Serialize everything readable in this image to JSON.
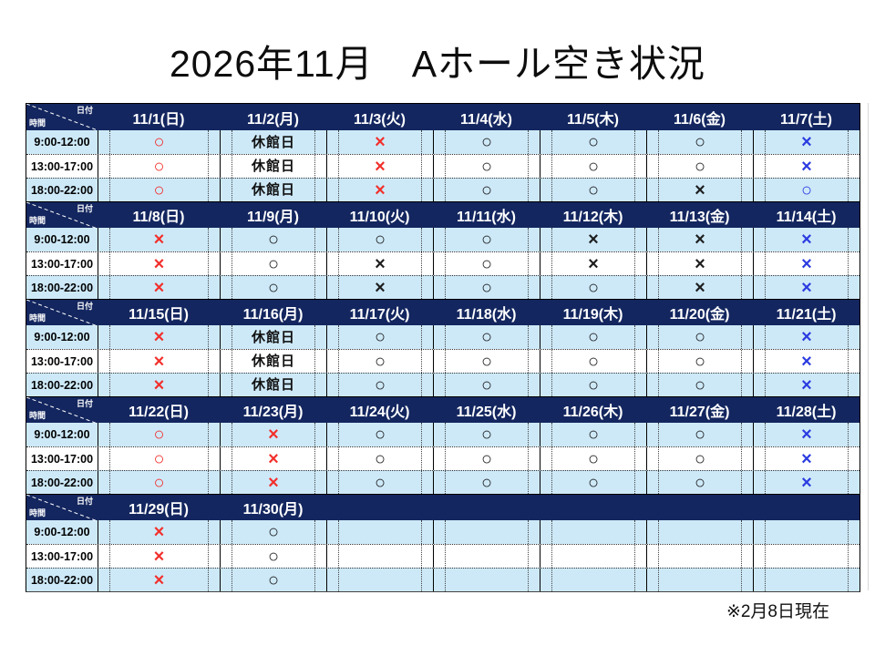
{
  "title": "2026年11月　Aホール空き状況",
  "note": "※2月8日現在",
  "corner": {
    "date_label": "日付",
    "time_label": "時間"
  },
  "legend_semantics": {
    "available": "○",
    "unavailable": "×",
    "closed": "休館日"
  },
  "colors": {
    "header_bg": "#13265F",
    "row_alt_bg": "#CDE9F8",
    "sunday_holiday_red": "#F2302C",
    "saturday_blue": "#2B3CE0",
    "weekday_black": "#1E1E1E"
  },
  "times": [
    "9:00-12:00",
    "13:00-17:00",
    "18:00-22:00"
  ],
  "weeks": [
    {
      "dates": [
        "11/1(日)",
        "11/2(月)",
        "11/3(火)",
        "11/4(水)",
        "11/5(木)",
        "11/6(金)",
        "11/7(土)"
      ],
      "rows": [
        [
          "○:r",
          "休館日:c",
          "×:r",
          "○:k",
          "○:k",
          "○:k",
          "×:b"
        ],
        [
          "○:r",
          "休館日:c",
          "×:r",
          "○:k",
          "○:k",
          "○:k",
          "×:b"
        ],
        [
          "○:r",
          "休館日:c",
          "×:r",
          "○:k",
          "○:k",
          "×:k",
          "○:b"
        ]
      ]
    },
    {
      "dates": [
        "11/8(日)",
        "11/9(月)",
        "11/10(火)",
        "11/11(水)",
        "11/12(木)",
        "11/13(金)",
        "11/14(土)"
      ],
      "rows": [
        [
          "×:r",
          "○:k",
          "○:k",
          "○:k",
          "×:k",
          "×:k",
          "×:b"
        ],
        [
          "×:r",
          "○:k",
          "×:k",
          "○:k",
          "×:k",
          "×:k",
          "×:b"
        ],
        [
          "×:r",
          "○:k",
          "×:k",
          "○:k",
          "○:k",
          "×:k",
          "×:b"
        ]
      ]
    },
    {
      "dates": [
        "11/15(日)",
        "11/16(月)",
        "11/17(火)",
        "11/18(水)",
        "11/19(木)",
        "11/20(金)",
        "11/21(土)"
      ],
      "rows": [
        [
          "×:r",
          "休館日:c",
          "○:k",
          "○:k",
          "○:k",
          "○:k",
          "×:b"
        ],
        [
          "×:r",
          "休館日:c",
          "○:k",
          "○:k",
          "○:k",
          "○:k",
          "×:b"
        ],
        [
          "×:r",
          "休館日:c",
          "○:k",
          "○:k",
          "○:k",
          "○:k",
          "×:b"
        ]
      ]
    },
    {
      "dates": [
        "11/22(日)",
        "11/23(月)",
        "11/24(火)",
        "11/25(水)",
        "11/26(木)",
        "11/27(金)",
        "11/28(土)"
      ],
      "rows": [
        [
          "○:r",
          "×:r",
          "○:k",
          "○:k",
          "○:k",
          "○:k",
          "×:b"
        ],
        [
          "○:r",
          "×:r",
          "○:k",
          "○:k",
          "○:k",
          "○:k",
          "×:b"
        ],
        [
          "○:r",
          "×:r",
          "○:k",
          "○:k",
          "○:k",
          "○:k",
          "×:b"
        ]
      ]
    },
    {
      "dates": [
        "11/29(日)",
        "11/30(月)",
        "",
        "",
        "",
        "",
        ""
      ],
      "rows": [
        [
          "×:r",
          "○:k",
          "",
          "",
          "",
          "",
          ""
        ],
        [
          "×:r",
          "○:k",
          "",
          "",
          "",
          "",
          ""
        ],
        [
          "×:r",
          "○:k",
          "",
          "",
          "",
          "",
          ""
        ]
      ]
    }
  ]
}
